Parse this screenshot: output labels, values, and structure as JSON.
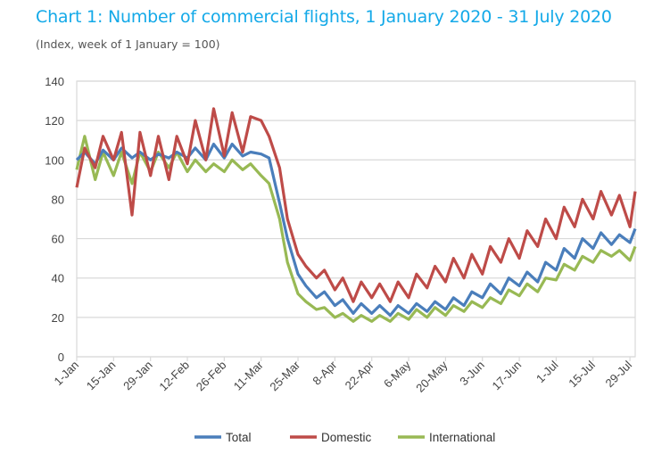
{
  "chart_data": {
    "type": "line",
    "title": "Chart 1: Number of commercial flights, 1 January 2020 - 31 July 2020",
    "subtitle": "(Index, week of 1 January = 100)",
    "xlabel": "",
    "ylabel": "",
    "ylim": [
      0,
      140
    ],
    "yticks": [
      0,
      20,
      40,
      60,
      80,
      100,
      120,
      140
    ],
    "x_unit": "days since 1-Jan-2020",
    "xlim": [
      0,
      212
    ],
    "xtick_days": [
      0,
      14,
      28,
      42,
      56,
      70,
      84,
      98,
      112,
      126,
      140,
      154,
      168,
      182,
      196,
      210
    ],
    "xtick_labels": [
      "1-Jan",
      "15-Jan",
      "29-Jan",
      "12-Feb",
      "26-Feb",
      "11-Mar",
      "25-Mar",
      "8-Apr",
      "22-Apr",
      "6-May",
      "20-May",
      "3-Jun",
      "17-Jun",
      "1-Jul",
      "15-Jul",
      "29-Jul"
    ],
    "grid": true,
    "legend_position": "bottom",
    "x": [
      0,
      3,
      7,
      10,
      14,
      17,
      21,
      24,
      28,
      31,
      35,
      38,
      42,
      45,
      49,
      52,
      56,
      59,
      63,
      66,
      70,
      73,
      77,
      80,
      84,
      87,
      91,
      94,
      98,
      101,
      105,
      108,
      112,
      115,
      119,
      122,
      126,
      129,
      133,
      136,
      140,
      143,
      147,
      150,
      154,
      157,
      161,
      164,
      168,
      171,
      175,
      178,
      182,
      185,
      189,
      192,
      196,
      199,
      203,
      206,
      210,
      212
    ],
    "series": [
      {
        "name": "Total",
        "color": "#4a7ebb",
        "values": [
          100,
          104,
          98,
          105,
          100,
          106,
          101,
          104,
          100,
          103,
          101,
          104,
          101,
          106,
          100,
          108,
          101,
          108,
          102,
          104,
          103,
          101,
          78,
          60,
          42,
          36,
          30,
          33,
          26,
          29,
          22,
          27,
          22,
          26,
          21,
          26,
          22,
          27,
          23,
          28,
          24,
          30,
          26,
          33,
          30,
          37,
          32,
          40,
          36,
          43,
          38,
          48,
          44,
          55,
          50,
          60,
          55,
          63,
          57,
          62,
          58,
          65
        ]
      },
      {
        "name": "Domestic",
        "color": "#be4b48",
        "values": [
          86,
          106,
          96,
          112,
          100,
          114,
          72,
          114,
          92,
          112,
          90,
          112,
          98,
          120,
          100,
          126,
          102,
          124,
          104,
          122,
          120,
          112,
          96,
          70,
          52,
          46,
          40,
          44,
          34,
          40,
          28,
          38,
          30,
          37,
          28,
          38,
          30,
          42,
          35,
          46,
          38,
          50,
          40,
          52,
          42,
          56,
          48,
          60,
          50,
          64,
          56,
          70,
          60,
          76,
          66,
          80,
          70,
          84,
          72,
          82,
          66,
          84
        ]
      },
      {
        "name": "International",
        "color": "#98b954",
        "values": [
          95,
          112,
          90,
          104,
          92,
          104,
          88,
          104,
          94,
          104,
          96,
          104,
          94,
          100,
          94,
          98,
          94,
          100,
          95,
          98,
          92,
          88,
          70,
          48,
          32,
          28,
          24,
          25,
          20,
          22,
          18,
          21,
          18,
          21,
          18,
          22,
          19,
          24,
          20,
          25,
          21,
          26,
          23,
          28,
          25,
          30,
          27,
          34,
          31,
          37,
          33,
          40,
          39,
          47,
          44,
          51,
          48,
          54,
          51,
          54,
          49,
          56
        ]
      }
    ]
  }
}
